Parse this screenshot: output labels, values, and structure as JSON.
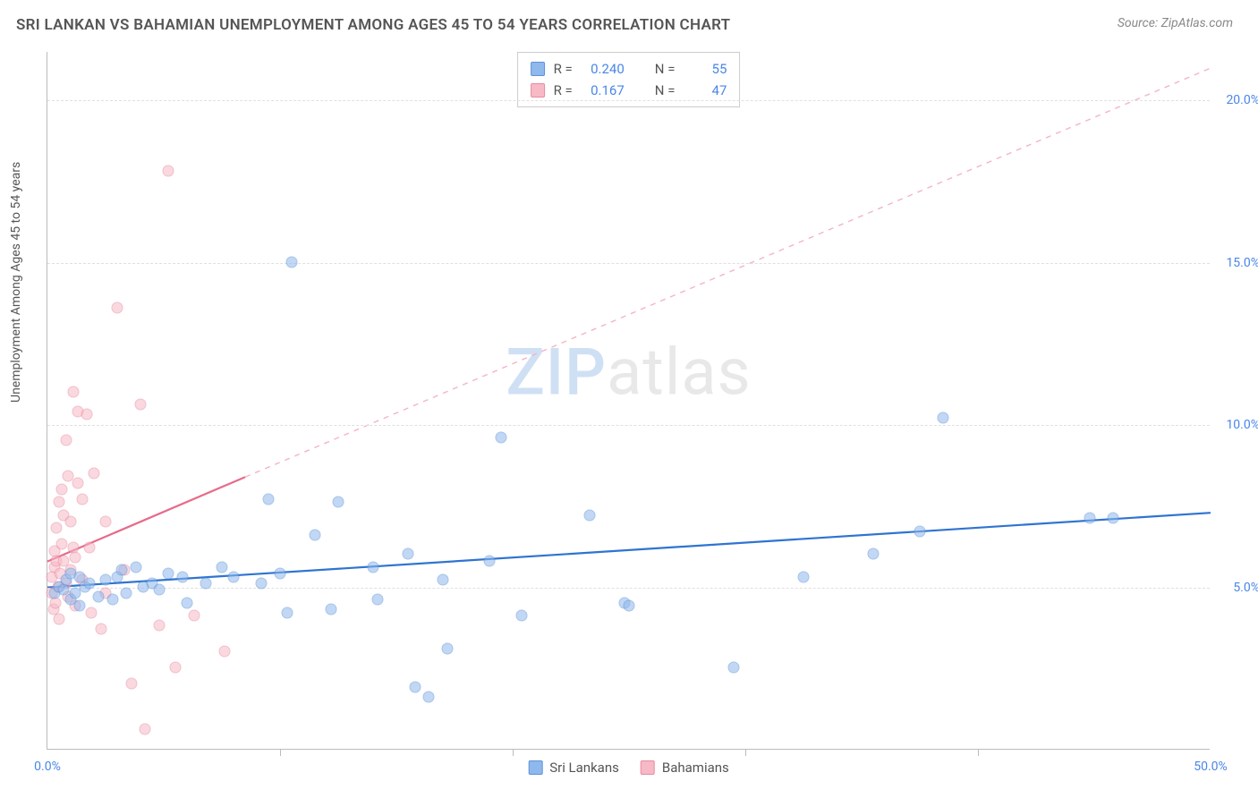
{
  "title": "SRI LANKAN VS BAHAMIAN UNEMPLOYMENT AMONG AGES 45 TO 54 YEARS CORRELATION CHART",
  "source_label": "Source: ZipAtlas.com",
  "y_axis_label": "Unemployment Among Ages 45 to 54 years",
  "watermark": {
    "zip": "ZIP",
    "atlas": "atlas"
  },
  "chart": {
    "type": "scatter",
    "background_color": "#ffffff",
    "grid_color": "#e0e0e0",
    "axis_color": "#bbbbbb",
    "tick_color": "#4a86e8",
    "xlim": [
      0,
      50
    ],
    "ylim": [
      0,
      21.5
    ],
    "yticks": [
      {
        "v": 5.0,
        "label": "5.0%"
      },
      {
        "v": 10.0,
        "label": "10.0%"
      },
      {
        "v": 15.0,
        "label": "15.0%"
      },
      {
        "v": 20.0,
        "label": "20.0%"
      }
    ],
    "xticks_major": [
      0,
      50
    ],
    "xticks_minor": [
      10,
      20,
      30,
      40
    ],
    "xtick_labels": {
      "0": "0.0%",
      "50": "50.0%"
    },
    "marker_radius": 6.5,
    "marker_opacity": 0.55,
    "series": [
      {
        "name": "Sri Lankans",
        "color": "#8fb8ec",
        "stroke": "#5c93d8",
        "R": "0.240",
        "N": "55",
        "trend": {
          "x1": 0,
          "y1": 5.0,
          "x2": 50,
          "y2": 7.3,
          "color": "#2f74d0",
          "width": 2.2,
          "dash": "none"
        },
        "points": [
          [
            0.3,
            4.8
          ],
          [
            0.5,
            5.0
          ],
          [
            0.7,
            4.9
          ],
          [
            0.8,
            5.2
          ],
          [
            1.0,
            4.6
          ],
          [
            1.0,
            5.4
          ],
          [
            1.2,
            4.8
          ],
          [
            1.4,
            5.3
          ],
          [
            1.4,
            4.4
          ],
          [
            1.6,
            5.0
          ],
          [
            1.8,
            5.1
          ],
          [
            2.2,
            4.7
          ],
          [
            2.5,
            5.2
          ],
          [
            2.8,
            4.6
          ],
          [
            3.0,
            5.3
          ],
          [
            3.2,
            5.5
          ],
          [
            3.4,
            4.8
          ],
          [
            3.8,
            5.6
          ],
          [
            4.1,
            5.0
          ],
          [
            4.5,
            5.1
          ],
          [
            4.8,
            4.9
          ],
          [
            5.2,
            5.4
          ],
          [
            5.8,
            5.3
          ],
          [
            6.0,
            4.5
          ],
          [
            6.8,
            5.1
          ],
          [
            7.5,
            5.6
          ],
          [
            8.0,
            5.3
          ],
          [
            9.2,
            5.1
          ],
          [
            9.5,
            7.7
          ],
          [
            10.0,
            5.4
          ],
          [
            10.3,
            4.2
          ],
          [
            10.5,
            15.0
          ],
          [
            11.5,
            6.6
          ],
          [
            12.2,
            4.3
          ],
          [
            12.5,
            7.6
          ],
          [
            14.0,
            5.6
          ],
          [
            14.2,
            4.6
          ],
          [
            15.5,
            6.0
          ],
          [
            15.8,
            1.9
          ],
          [
            16.4,
            1.6
          ],
          [
            17.0,
            5.2
          ],
          [
            17.2,
            3.1
          ],
          [
            19.0,
            5.8
          ],
          [
            19.5,
            9.6
          ],
          [
            20.4,
            4.1
          ],
          [
            23.3,
            7.2
          ],
          [
            24.8,
            4.5
          ],
          [
            25.0,
            4.4
          ],
          [
            29.5,
            2.5
          ],
          [
            32.5,
            5.3
          ],
          [
            35.5,
            6.0
          ],
          [
            37.5,
            6.7
          ],
          [
            38.5,
            10.2
          ],
          [
            44.8,
            7.1
          ],
          [
            45.8,
            7.1
          ]
        ]
      },
      {
        "name": "Bahamians",
        "color": "#f7b9c5",
        "stroke": "#e98aa0",
        "R": "0.167",
        "N": "47",
        "trend_solid": {
          "x1": 0,
          "y1": 5.8,
          "x2": 8.5,
          "y2": 8.4,
          "color": "#e76b8a",
          "width": 2.2
        },
        "trend_dash": {
          "x1": 8.5,
          "y1": 8.4,
          "x2": 50,
          "y2": 21.0,
          "color": "#f3b5c3",
          "width": 1.4
        },
        "points": [
          [
            0.2,
            4.8
          ],
          [
            0.2,
            5.3
          ],
          [
            0.25,
            4.3
          ],
          [
            0.3,
            5.6
          ],
          [
            0.3,
            6.1
          ],
          [
            0.35,
            4.5
          ],
          [
            0.4,
            5.8
          ],
          [
            0.4,
            6.8
          ],
          [
            0.45,
            5.0
          ],
          [
            0.5,
            7.6
          ],
          [
            0.5,
            4.0
          ],
          [
            0.55,
            5.4
          ],
          [
            0.6,
            6.3
          ],
          [
            0.6,
            8.0
          ],
          [
            0.7,
            5.8
          ],
          [
            0.7,
            7.2
          ],
          [
            0.8,
            5.1
          ],
          [
            0.8,
            9.5
          ],
          [
            0.9,
            4.7
          ],
          [
            0.9,
            8.4
          ],
          [
            1.0,
            5.5
          ],
          [
            1.0,
            7.0
          ],
          [
            1.1,
            6.2
          ],
          [
            1.1,
            11.0
          ],
          [
            1.2,
            4.4
          ],
          [
            1.2,
            5.9
          ],
          [
            1.3,
            8.2
          ],
          [
            1.3,
            10.4
          ],
          [
            1.5,
            7.7
          ],
          [
            1.5,
            5.2
          ],
          [
            1.7,
            10.3
          ],
          [
            1.8,
            6.2
          ],
          [
            1.9,
            4.2
          ],
          [
            2.0,
            8.5
          ],
          [
            2.3,
            3.7
          ],
          [
            2.5,
            4.8
          ],
          [
            2.5,
            7.0
          ],
          [
            3.0,
            13.6
          ],
          [
            3.3,
            5.5
          ],
          [
            3.6,
            2.0
          ],
          [
            4.0,
            10.6
          ],
          [
            4.2,
            0.6
          ],
          [
            4.8,
            3.8
          ],
          [
            5.2,
            17.8
          ],
          [
            5.5,
            2.5
          ],
          [
            6.3,
            4.1
          ],
          [
            7.6,
            3.0
          ]
        ]
      }
    ],
    "stats_legend_labels": {
      "R": "R =",
      "N": "N ="
    },
    "bottom_legend_labels": [
      "Sri Lankans",
      "Bahamians"
    ]
  }
}
